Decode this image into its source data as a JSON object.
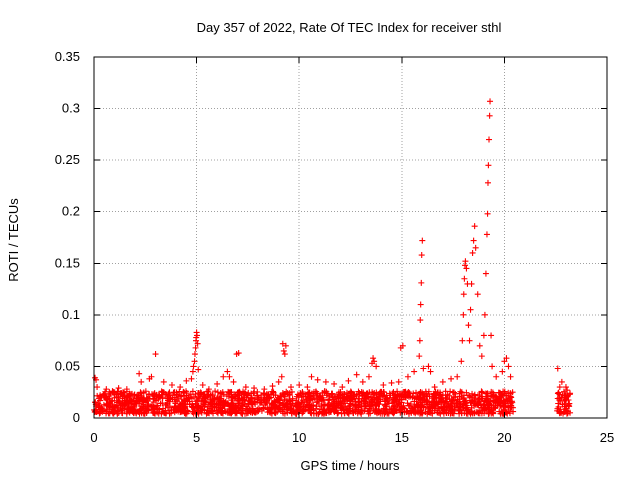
{
  "chart_data": {
    "type": "scatter",
    "title": "Day 357 of 2022, Rate Of TEC Index for receiver sthl",
    "xlabel": "GPS time / hours",
    "ylabel": "ROTI / TECUs",
    "xlim": [
      0,
      25
    ],
    "ylim": [
      0,
      0.35
    ],
    "x_ticks": [
      "0",
      "5",
      "10",
      "15",
      "20",
      "25"
    ],
    "y_ticks": [
      "0",
      "0.05",
      "0.1",
      "0.15",
      "0.2",
      "0.25",
      "0.3",
      "0.35"
    ],
    "x_tick_values": [
      0,
      5,
      10,
      15,
      20,
      25
    ],
    "y_tick_values": [
      0,
      0.05,
      0.1,
      0.15,
      0.2,
      0.25,
      0.3,
      0.35
    ],
    "grid": true,
    "marker": "+",
    "color": "#ff0000",
    "series": [
      {
        "points": [
          [
            0.05,
            0.039
          ],
          [
            0.1,
            0.037
          ],
          [
            0.15,
            0.03
          ],
          [
            0.3,
            0.022
          ],
          [
            0.6,
            0.028
          ],
          [
            0.9,
            0.026
          ],
          [
            1.2,
            0.029
          ],
          [
            1.6,
            0.028
          ],
          [
            2.2,
            0.043
          ],
          [
            2.3,
            0.035
          ],
          [
            2.7,
            0.038
          ],
          [
            2.8,
            0.04
          ],
          [
            3.0,
            0.062
          ],
          [
            3.4,
            0.035
          ],
          [
            3.8,
            0.032
          ],
          [
            4.2,
            0.03
          ],
          [
            4.5,
            0.036
          ],
          [
            4.75,
            0.038
          ],
          [
            4.82,
            0.045
          ],
          [
            4.85,
            0.05
          ],
          [
            4.9,
            0.055
          ],
          [
            4.92,
            0.062
          ],
          [
            4.95,
            0.068
          ],
          [
            4.97,
            0.075
          ],
          [
            4.98,
            0.078
          ],
          [
            5.0,
            0.083
          ],
          [
            5.02,
            0.08
          ],
          [
            5.05,
            0.072
          ],
          [
            5.08,
            0.047
          ],
          [
            5.3,
            0.032
          ],
          [
            5.6,
            0.028
          ],
          [
            6.0,
            0.033
          ],
          [
            6.3,
            0.04
          ],
          [
            6.5,
            0.045
          ],
          [
            6.6,
            0.04
          ],
          [
            6.8,
            0.035
          ],
          [
            6.95,
            0.062
          ],
          [
            7.05,
            0.063
          ],
          [
            7.4,
            0.03
          ],
          [
            7.8,
            0.029
          ],
          [
            8.3,
            0.028
          ],
          [
            8.7,
            0.031
          ],
          [
            9.0,
            0.035
          ],
          [
            9.15,
            0.04
          ],
          [
            9.2,
            0.072
          ],
          [
            9.25,
            0.065
          ],
          [
            9.3,
            0.062
          ],
          [
            9.35,
            0.07
          ],
          [
            9.6,
            0.03
          ],
          [
            10.0,
            0.032
          ],
          [
            10.4,
            0.03
          ],
          [
            10.6,
            0.04
          ],
          [
            10.9,
            0.037
          ],
          [
            11.3,
            0.035
          ],
          [
            11.7,
            0.033
          ],
          [
            12.1,
            0.03
          ],
          [
            12.4,
            0.036
          ],
          [
            12.8,
            0.042
          ],
          [
            13.1,
            0.035
          ],
          [
            13.4,
            0.04
          ],
          [
            13.55,
            0.053
          ],
          [
            13.6,
            0.058
          ],
          [
            13.65,
            0.055
          ],
          [
            13.75,
            0.05
          ],
          [
            14.1,
            0.032
          ],
          [
            14.5,
            0.034
          ],
          [
            14.85,
            0.035
          ],
          [
            14.95,
            0.068
          ],
          [
            15.05,
            0.07
          ],
          [
            15.3,
            0.04
          ],
          [
            15.6,
            0.045
          ],
          [
            15.85,
            0.06
          ],
          [
            15.88,
            0.075
          ],
          [
            15.9,
            0.095
          ],
          [
            15.92,
            0.11
          ],
          [
            15.95,
            0.131
          ],
          [
            15.97,
            0.158
          ],
          [
            16.0,
            0.172
          ],
          [
            16.05,
            0.048
          ],
          [
            16.3,
            0.05
          ],
          [
            16.4,
            0.045
          ],
          [
            16.6,
            0.03
          ],
          [
            17.0,
            0.035
          ],
          [
            17.4,
            0.038
          ],
          [
            17.7,
            0.04
          ],
          [
            17.9,
            0.055
          ],
          [
            17.95,
            0.075
          ],
          [
            18.0,
            0.1
          ],
          [
            18.02,
            0.12
          ],
          [
            18.05,
            0.135
          ],
          [
            18.08,
            0.148
          ],
          [
            18.1,
            0.152
          ],
          [
            18.15,
            0.145
          ],
          [
            18.2,
            0.13
          ],
          [
            18.25,
            0.09
          ],
          [
            18.3,
            0.075
          ],
          [
            18.35,
            0.105
          ],
          [
            18.4,
            0.13
          ],
          [
            18.45,
            0.16
          ],
          [
            18.5,
            0.172
          ],
          [
            18.55,
            0.186
          ],
          [
            18.6,
            0.165
          ],
          [
            18.7,
            0.12
          ],
          [
            18.8,
            0.07
          ],
          [
            18.9,
            0.06
          ],
          [
            19.0,
            0.08
          ],
          [
            19.05,
            0.1
          ],
          [
            19.1,
            0.14
          ],
          [
            19.15,
            0.178
          ],
          [
            19.18,
            0.198
          ],
          [
            19.2,
            0.228
          ],
          [
            19.22,
            0.245
          ],
          [
            19.25,
            0.27
          ],
          [
            19.28,
            0.293
          ],
          [
            19.3,
            0.307
          ],
          [
            19.35,
            0.08
          ],
          [
            19.4,
            0.05
          ],
          [
            19.6,
            0.04
          ],
          [
            19.9,
            0.045
          ],
          [
            20.0,
            0.055
          ],
          [
            20.1,
            0.058
          ],
          [
            20.2,
            0.05
          ],
          [
            20.3,
            0.04
          ],
          [
            20.4,
            0.025
          ],
          [
            22.6,
            0.048
          ],
          [
            22.7,
            0.03
          ],
          [
            22.8,
            0.035
          ],
          [
            23.0,
            0.03
          ]
        ]
      }
    ],
    "dense_band": {
      "segments": [
        {
          "x": [
            0.0,
            20.45
          ],
          "y": [
            0.004,
            0.026
          ]
        },
        {
          "x": [
            22.55,
            23.2
          ],
          "y": [
            0.004,
            0.028
          ]
        }
      ]
    }
  }
}
